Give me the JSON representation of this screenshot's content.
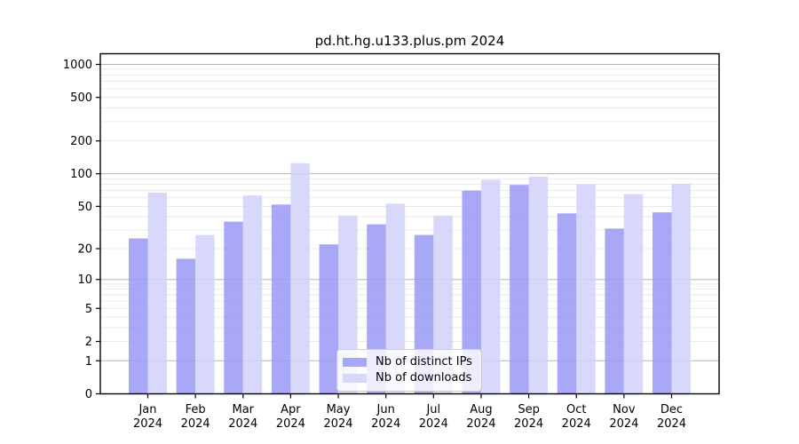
{
  "chart_data": {
    "type": "bar",
    "title": "pd.ht.hg.u133.plus.pm 2024",
    "categories": [
      "Jan",
      "Feb",
      "Mar",
      "Apr",
      "May",
      "Jun",
      "Jul",
      "Aug",
      "Sep",
      "Oct",
      "Nov",
      "Dec"
    ],
    "category_year": "2024",
    "series": [
      {
        "name": "Nb of distinct IPs",
        "color": "rgba(153,153,246,0.85)",
        "values": [
          25,
          16,
          36,
          52,
          22,
          34,
          27,
          70,
          79,
          43,
          31,
          44
        ]
      },
      {
        "name": "Nb of downloads",
        "color": "rgba(209,209,250,0.85)",
        "values": [
          67,
          27,
          63,
          125,
          41,
          53,
          41,
          88,
          94,
          80,
          65,
          81
        ]
      }
    ],
    "xlabel": "",
    "ylabel": "",
    "y_axis": {
      "scale": "log10(1+v)",
      "ticks": [
        0,
        1,
        2,
        5,
        10,
        20,
        50,
        100,
        200,
        500,
        1000
      ],
      "range": [
        0,
        1000
      ],
      "major_grid_values": [
        1,
        10,
        100,
        1000
      ],
      "minor_grid_multipliers": [
        2,
        3,
        4,
        5,
        6,
        7,
        8,
        9
      ]
    },
    "grid": "on",
    "legend_position": "inside-bottom-center",
    "colors": {
      "bar_ips": "#a8a8f8",
      "bar_downloads": "#d8d8fa",
      "major_grid": "#b6b6b6",
      "minor_grid": "#e4e4e4",
      "axis": "#000000",
      "text": "#000000"
    }
  }
}
